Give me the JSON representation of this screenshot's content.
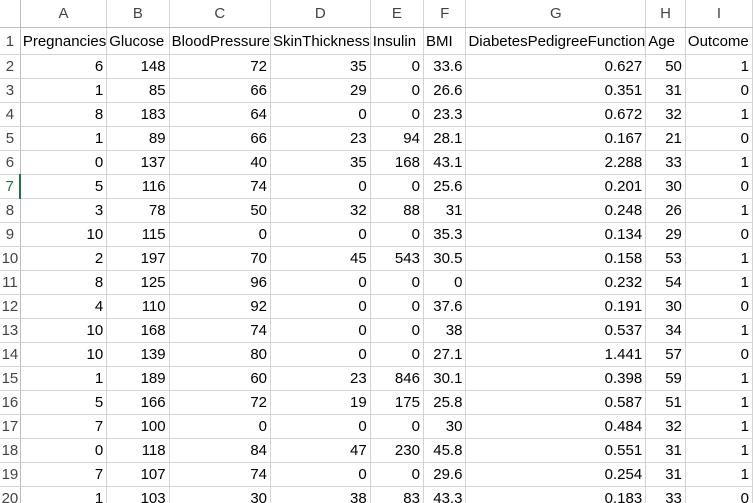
{
  "columns": [
    "A",
    "B",
    "C",
    "D",
    "E",
    "F",
    "G",
    "H",
    "I"
  ],
  "row_numbers": [
    "1",
    "2",
    "3",
    "4",
    "5",
    "6",
    "7",
    "8",
    "9",
    "10",
    "11",
    "12",
    "13",
    "14",
    "15",
    "16",
    "17",
    "18",
    "19",
    "20"
  ],
  "active_row": "7",
  "header_row": [
    "Pregnancies",
    "Glucose",
    "BloodPressure",
    "SkinThickness",
    "Insulin",
    "BMI",
    "DiabetesPedigreeFunction",
    "Age",
    "Outcome"
  ],
  "rows": [
    [
      "6",
      "148",
      "72",
      "35",
      "0",
      "33.6",
      "0.627",
      "50",
      "1"
    ],
    [
      "1",
      "85",
      "66",
      "29",
      "0",
      "26.6",
      "0.351",
      "31",
      "0"
    ],
    [
      "8",
      "183",
      "64",
      "0",
      "0",
      "23.3",
      "0.672",
      "32",
      "1"
    ],
    [
      "1",
      "89",
      "66",
      "23",
      "94",
      "28.1",
      "0.167",
      "21",
      "0"
    ],
    [
      "0",
      "137",
      "40",
      "35",
      "168",
      "43.1",
      "2.288",
      "33",
      "1"
    ],
    [
      "5",
      "116",
      "74",
      "0",
      "0",
      "25.6",
      "0.201",
      "30",
      "0"
    ],
    [
      "3",
      "78",
      "50",
      "32",
      "88",
      "31",
      "0.248",
      "26",
      "1"
    ],
    [
      "10",
      "115",
      "0",
      "0",
      "0",
      "35.3",
      "0.134",
      "29",
      "0"
    ],
    [
      "2",
      "197",
      "70",
      "45",
      "543",
      "30.5",
      "0.158",
      "53",
      "1"
    ],
    [
      "8",
      "125",
      "96",
      "0",
      "0",
      "0",
      "0.232",
      "54",
      "1"
    ],
    [
      "4",
      "110",
      "92",
      "0",
      "0",
      "37.6",
      "0.191",
      "30",
      "0"
    ],
    [
      "10",
      "168",
      "74",
      "0",
      "0",
      "38",
      "0.537",
      "34",
      "1"
    ],
    [
      "10",
      "139",
      "80",
      "0",
      "0",
      "27.1",
      "1.441",
      "57",
      "0"
    ],
    [
      "1",
      "189",
      "60",
      "23",
      "846",
      "30.1",
      "0.398",
      "59",
      "1"
    ],
    [
      "5",
      "166",
      "72",
      "19",
      "175",
      "25.8",
      "0.587",
      "51",
      "1"
    ],
    [
      "7",
      "100",
      "0",
      "0",
      "0",
      "30",
      "0.484",
      "32",
      "1"
    ],
    [
      "0",
      "118",
      "84",
      "47",
      "230",
      "45.8",
      "0.551",
      "31",
      "1"
    ],
    [
      "7",
      "107",
      "74",
      "0",
      "0",
      "29.6",
      "0.254",
      "31",
      "1"
    ],
    [
      "1",
      "103",
      "30",
      "38",
      "83",
      "43.3",
      "0.183",
      "33",
      "0"
    ]
  ]
}
